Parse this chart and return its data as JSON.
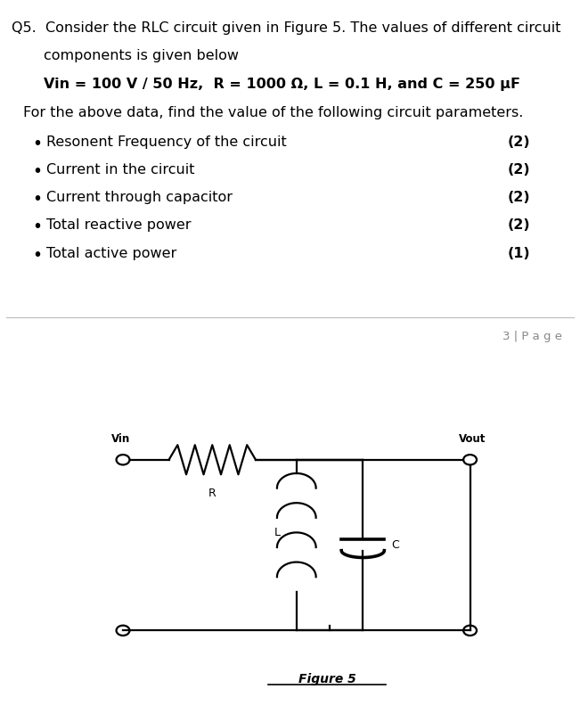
{
  "bg_color": "#ffffff",
  "text_color": "#000000",
  "gray_bar_color": "#555555",
  "page_num": "3 | P a g e",
  "figure_label": "Figure 5",
  "font_size_main": 11.5,
  "bullets": [
    [
      "Resonent Frequency of the circuit",
      "(2)"
    ],
    [
      "Current in the circuit",
      "(2)"
    ],
    [
      "Current through capacitor",
      "(2)"
    ],
    [
      "Total reactive power",
      "(2)"
    ],
    [
      "Total active power",
      "(1)"
    ]
  ]
}
